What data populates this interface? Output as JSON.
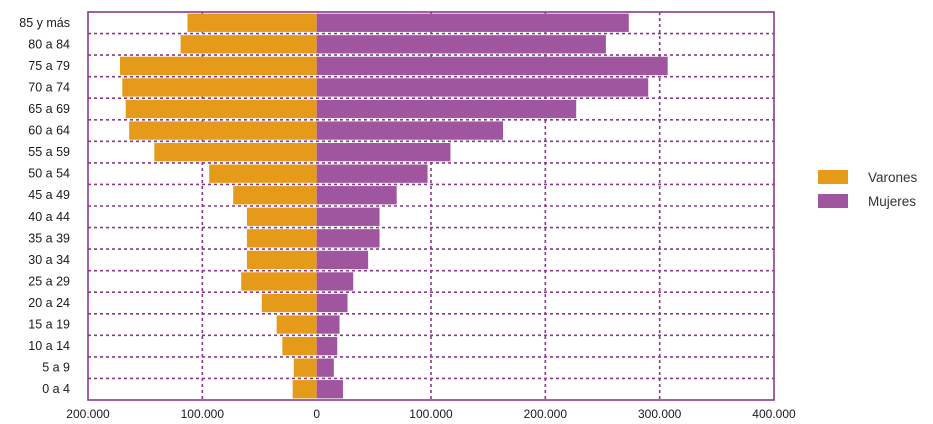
{
  "chart_data": {
    "type": "bar",
    "orientation": "horizontal",
    "layout": "population-pyramid",
    "categories": [
      "85 y más",
      "80 a 84",
      "75 a 79",
      "70 a 74",
      "65 a 69",
      "60 a 64",
      "55 a 59",
      "50 a 54",
      "45 a 49",
      "40 a 44",
      "35 a 39",
      "30 a 34",
      "25 a 29",
      "20 a 24",
      "15 a 19",
      "10 a 14",
      "5 a 9",
      "0 a 4"
    ],
    "series": [
      {
        "name": "Varones",
        "color": "#e69a1a",
        "side": "left",
        "values": [
          113000,
          119000,
          172000,
          170000,
          167000,
          164000,
          142000,
          94000,
          73000,
          61000,
          61000,
          61000,
          66000,
          48000,
          35000,
          30000,
          20000,
          21000
        ]
      },
      {
        "name": "Mujeres",
        "color": "#a0569f",
        "side": "right",
        "values": [
          273000,
          253000,
          307000,
          290000,
          227000,
          163000,
          117000,
          97000,
          70000,
          55000,
          55000,
          45000,
          32000,
          27000,
          20000,
          18000,
          15000,
          23000
        ]
      }
    ],
    "xticks": [
      "200.000",
      "100.000",
      "0",
      "100.000",
      "200.000",
      "300.000",
      "400.000"
    ],
    "xlim": [
      -200000,
      400000
    ],
    "grid": true,
    "legend_position": "right",
    "title": "",
    "xlabel": "",
    "ylabel": ""
  }
}
